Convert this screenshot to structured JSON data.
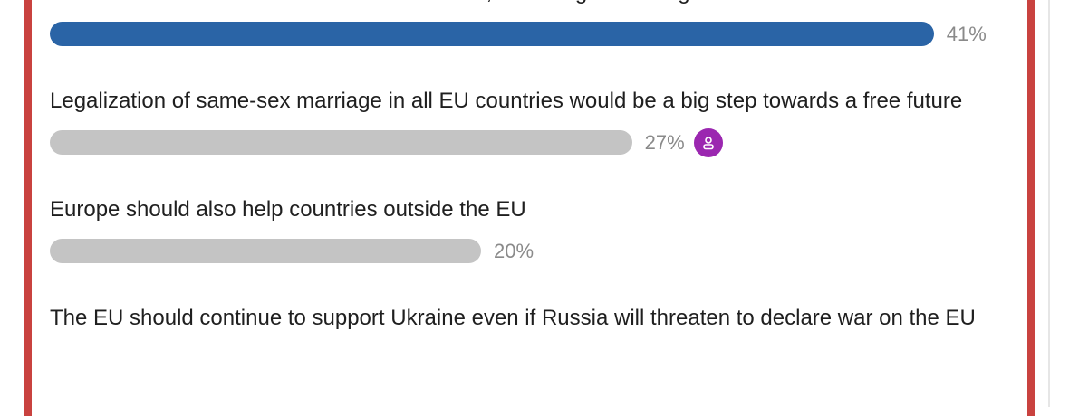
{
  "poll": {
    "options": [
      {
        "text": "There should be more sanctions for countries, offending human rights",
        "value": 41,
        "value_label": "41%",
        "color": "#2a64a6",
        "voted": false
      },
      {
        "text": "Legalization of same-sex marriage in all EU countries would be a big step towards a free future",
        "value": 27,
        "value_label": "27%",
        "color": "#c4c4c4",
        "voted": true
      },
      {
        "text": "Europe should also help countries outside the EU",
        "value": 20,
        "value_label": "20%",
        "color": "#c4c4c4",
        "voted": false
      },
      {
        "text": "The EU should continue to support Ukraine even if Russia will threaten to declare war on the EU"
      }
    ]
  }
}
